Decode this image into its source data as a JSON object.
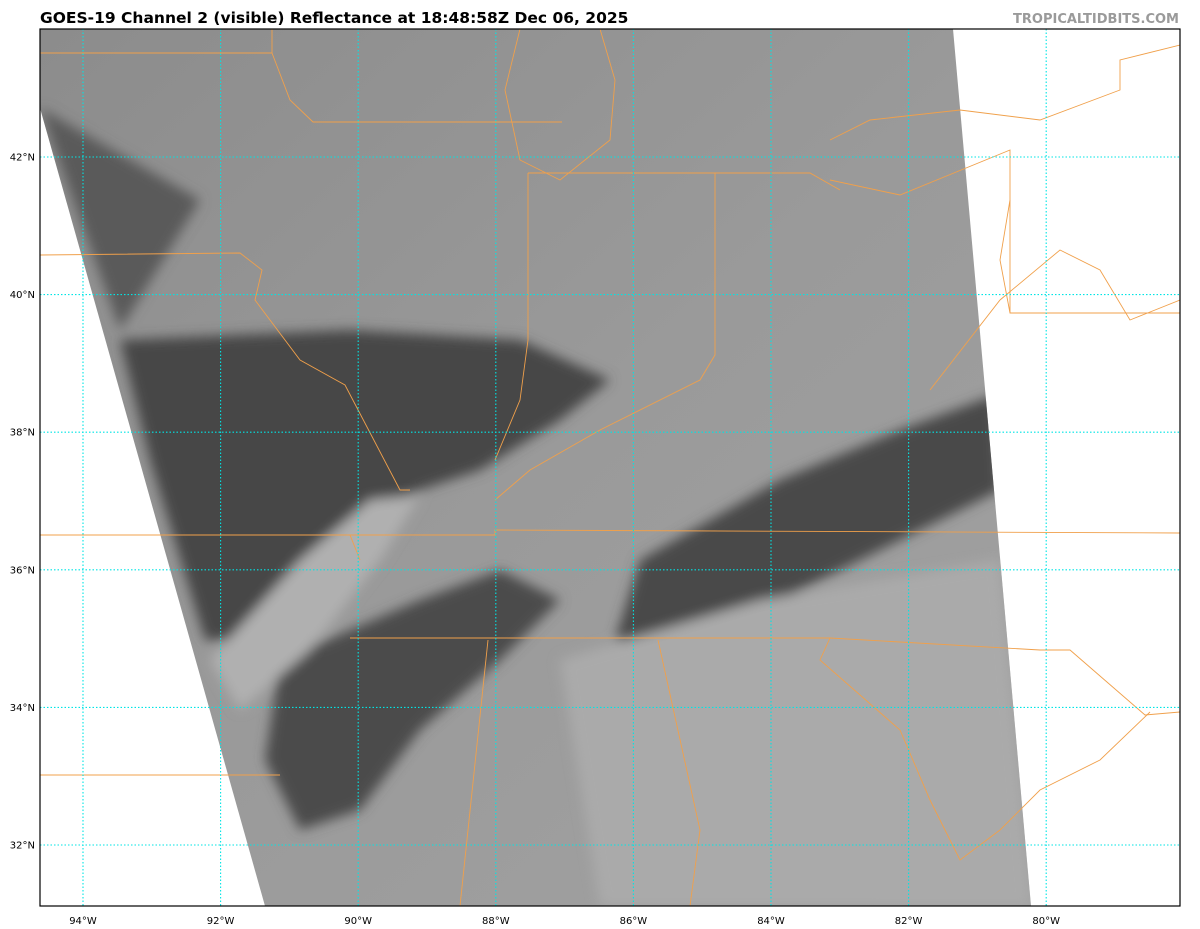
{
  "title": "GOES-19 Channel 2 (visible) Reflectance at 18:48:58Z Dec 06, 2025",
  "watermark": "TROPICALTIDBITS.COM",
  "map": {
    "extent": {
      "lon": [
        -94.62,
        -78.06
      ],
      "lat": [
        31.1,
        43.83
      ]
    },
    "colors": {
      "gridlines": "#00e5e5",
      "borders": "#f0a04b",
      "frame": "#000000"
    },
    "lat_labels": [
      {
        "value": 42,
        "text": "42°N"
      },
      {
        "value": 40,
        "text": "40°N"
      },
      {
        "value": 38,
        "text": "38°N"
      },
      {
        "value": 36,
        "text": "36°N"
      },
      {
        "value": 34,
        "text": "34°N"
      },
      {
        "value": 32,
        "text": "32°N"
      }
    ],
    "lon_labels": [
      {
        "value": -94,
        "text": "94°W"
      },
      {
        "value": -92,
        "text": "92°W"
      },
      {
        "value": -90,
        "text": "90°W"
      },
      {
        "value": -88,
        "text": "88°W"
      },
      {
        "value": -86,
        "text": "86°W"
      },
      {
        "value": -84,
        "text": "84°W"
      },
      {
        "value": -82,
        "text": "82°W"
      },
      {
        "value": -80,
        "text": "80°W"
      }
    ]
  }
}
